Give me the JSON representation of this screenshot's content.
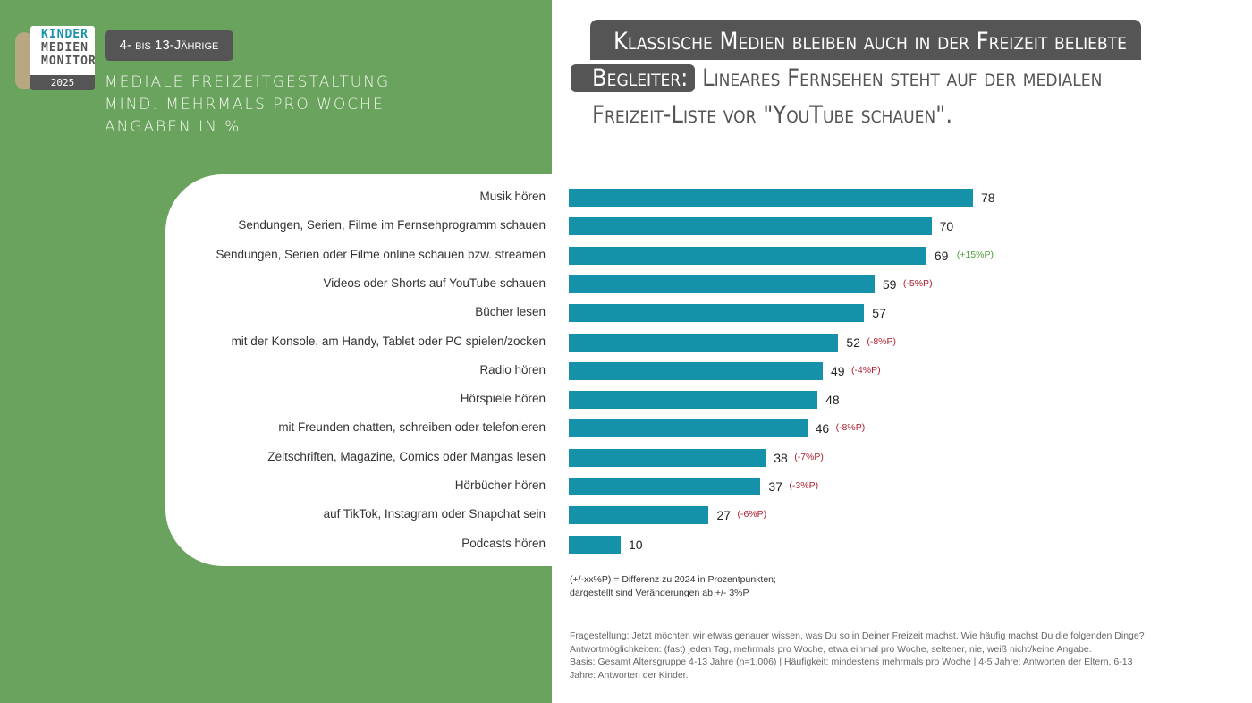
{
  "logo": {
    "lines": [
      "KINDER",
      "MEDIEN",
      "MONITOR"
    ],
    "year": "2025"
  },
  "age_badge": "4- bis 13-Jährige",
  "subtitle": [
    "Mediale Freizeitgestaltung",
    "mind. mehrmals pro Woche",
    "Angaben in %"
  ],
  "headline": {
    "part1": "Klassische Medien bleiben auch in der Freizeit beliebte",
    "part2": "Begleiter:",
    "part3": " Lineares Fernsehen steht auf der medialen Freizeit-Liste vor \"YouTube schauen\"."
  },
  "colors": {
    "bar": "#1592aa",
    "positive": "#4e9a3e",
    "negative": "#b01e2e",
    "background_green": "#6aa35e"
  },
  "chart_data": {
    "type": "bar",
    "orientation": "horizontal",
    "xlim": [
      0,
      100
    ],
    "categories": [
      "Musik hören",
      "Sendungen, Serien, Filme im Fernsehprogramm schauen",
      "Sendungen, Serien oder Filme online schauen bzw. streamen",
      "Videos oder Shorts auf YouTube schauen",
      "Bücher lesen",
      "mit der Konsole, am Handy, Tablet oder PC spielen/zocken",
      "Radio hören",
      "Hörspiele hören",
      "mit Freunden chatten, schreiben oder telefonieren",
      "Zeitschriften, Magazine, Comics oder Mangas lesen",
      "Hörbücher hören",
      "auf TikTok, Instagram oder Snapchat sein",
      "Podcasts hören"
    ],
    "values": [
      78,
      70,
      69,
      59,
      57,
      52,
      49,
      48,
      46,
      38,
      37,
      27,
      10
    ],
    "changes": [
      "",
      "",
      "(+15%P)",
      "(-5%P)",
      "",
      "(-8%P)",
      "(-4%P)",
      "",
      "(-8%P)",
      "(-7%P)",
      "(-3%P)",
      "(-6%P)",
      ""
    ]
  },
  "note": [
    "(+/-xx%P) = Differenz zu 2024 in Prozentpunkten;",
    "dargestellt sind Veränderungen ab +/- 3%P"
  ],
  "footer": [
    "Fragestellung: Jetzt möchten wir etwas genauer wissen, was Du so in Deiner Freizeit machst. Wie häufig machst Du die folgenden Dinge?",
    "Antwortmöglichkeiten: (fast) jeden Tag, mehrmals pro Woche, etwa einmal pro Woche, seltener, nie, weiß nicht/keine Angabe.",
    "Basis: Gesamt Altersgruppe 4-13 Jahre (n=1.006) | Häufigkeit: mindestens mehrmals pro Woche | 4-5 Jahre: Antworten der Eltern, 6-13 Jahre: Antworten der Kinder."
  ]
}
